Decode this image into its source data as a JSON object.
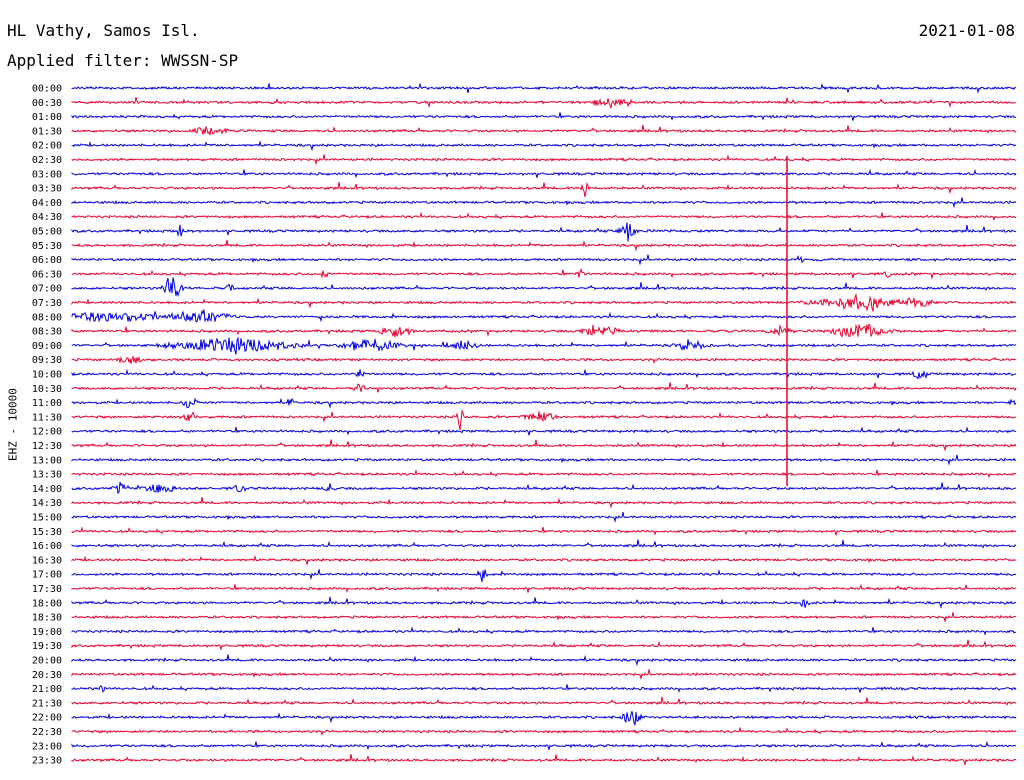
{
  "header": {
    "station": "HL Vathy, Samos Isl.",
    "date": "2021-01-08",
    "filter": "Applied filter: WWSSN-SP"
  },
  "chart_data": {
    "type": "line",
    "title": "HL Vathy, Samos Isl.",
    "subtitle": "Applied filter: WWSSN-SP",
    "ylabel": "EHZ - 10000",
    "date": "2021-01-08",
    "trace_labels": [
      "00:00",
      "00:30",
      "01:00",
      "01:30",
      "02:00",
      "02:30",
      "03:00",
      "03:30",
      "04:00",
      "04:30",
      "05:00",
      "05:30",
      "06:00",
      "06:30",
      "07:00",
      "07:30",
      "08:00",
      "08:30",
      "09:00",
      "09:30",
      "10:00",
      "10:30",
      "11:00",
      "11:30",
      "12:00",
      "12:30",
      "13:00",
      "13:30",
      "14:00",
      "14:30",
      "15:00",
      "15:30",
      "16:00",
      "16:30",
      "17:00",
      "17:30",
      "18:00",
      "18:30",
      "19:00",
      "19:30",
      "20:00",
      "20:30",
      "21:00",
      "21:30",
      "22:00",
      "22:30",
      "23:00",
      "23:30"
    ],
    "trace_colors": [
      "#0000dd",
      "#e8002d"
    ],
    "trace_duration_minutes": 30,
    "grid": false
  }
}
